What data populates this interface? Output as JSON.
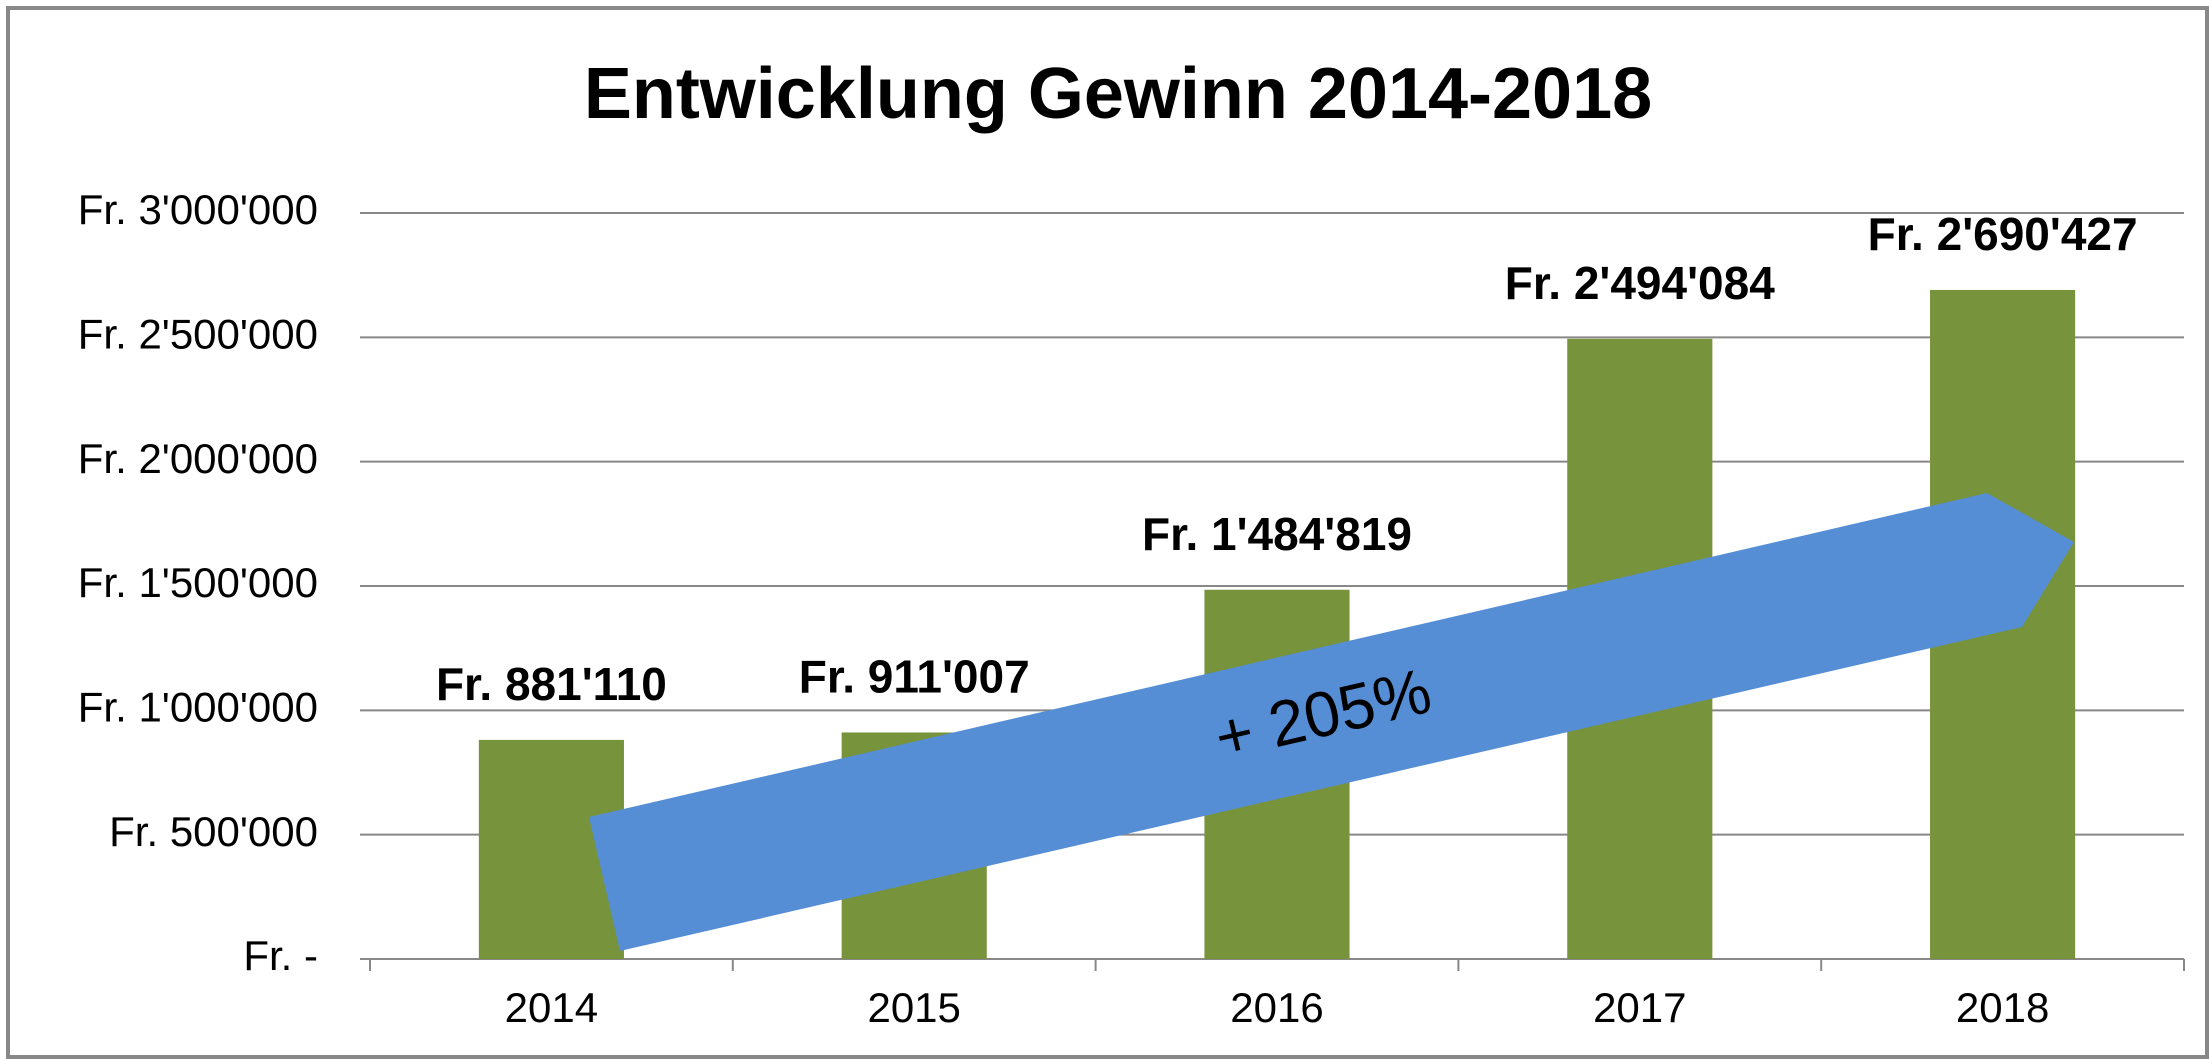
{
  "chart_data": {
    "type": "bar",
    "title": "Entwicklung Gewinn 2014-2018",
    "categories": [
      "2014",
      "2015",
      "2016",
      "2017",
      "2018"
    ],
    "values": [
      881110,
      911007,
      1484819,
      2494084,
      2690427
    ],
    "value_labels": [
      "Fr. 881'110",
      "Fr. 911'007",
      "Fr. 1'484'819",
      "Fr. 2'494'084",
      "Fr. 2'690'427"
    ],
    "color": "#77933c",
    "ylim": [
      0,
      3000000
    ],
    "yticks": [
      {
        "value": 0,
        "label": "Fr. -"
      },
      {
        "value": 500000,
        "label": "Fr. 500'000"
      },
      {
        "value": 1000000,
        "label": "Fr. 1'000'000"
      },
      {
        "value": 1500000,
        "label": "Fr. 1'500'000"
      },
      {
        "value": 2000000,
        "label": "Fr. 2'000'000"
      },
      {
        "value": 2500000,
        "label": "Fr. 2'500'000"
      },
      {
        "value": 3000000,
        "label": "Fr. 3'000'000"
      }
    ],
    "grid": true,
    "annotations": [
      "+ 205%"
    ]
  }
}
